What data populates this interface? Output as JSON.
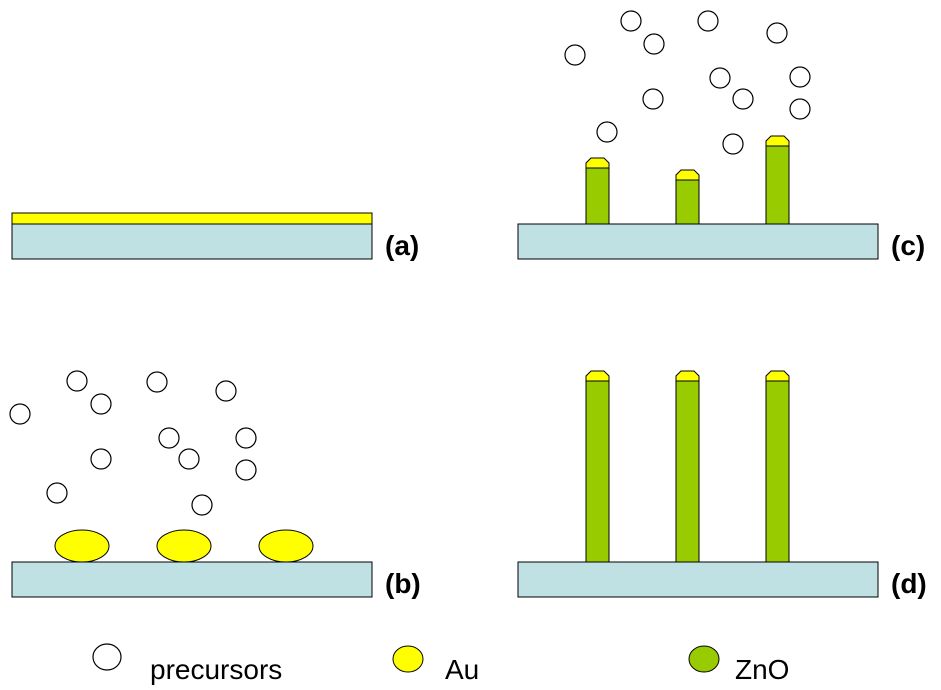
{
  "panels": [
    {
      "label": "(a)"
    },
    {
      "label": "(b)"
    },
    {
      "label": "(c)"
    },
    {
      "label": "(d)"
    }
  ],
  "legend": [
    {
      "label": "precursors"
    },
    {
      "label": "Au"
    },
    {
      "label": "ZnO"
    }
  ]
}
